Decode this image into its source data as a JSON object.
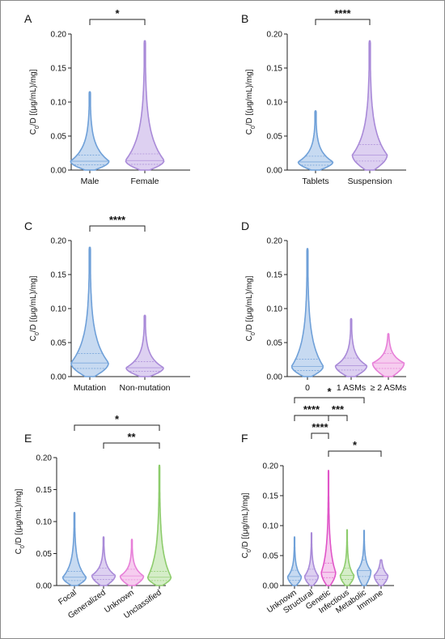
{
  "chart_data": [
    {
      "panel_label": "A",
      "type": "violin",
      "ylabel_main": "C",
      "ylabel_sub": "0",
      "ylabel_rest": "/D [(μg/mL)/mg]",
      "ylim": [
        0,
        0.2
      ],
      "yticks": [
        "0.00",
        "0.05",
        "0.10",
        "0.15",
        "0.20"
      ],
      "categories": [
        "Male",
        "Female"
      ],
      "colors": [
        "#6fa0d8",
        "#a98ad8"
      ],
      "fills": [
        "#c7daf1",
        "#ddd0f1"
      ],
      "max": [
        0.115,
        0.19
      ],
      "mode": [
        0.013,
        0.014
      ],
      "width": [
        0.35,
        0.35
      ],
      "significance": [
        {
          "from": 0,
          "to": 1,
          "label": "*",
          "level": 0
        }
      ]
    },
    {
      "panel_label": "B",
      "type": "violin",
      "ylabel_main": "C",
      "ylabel_sub": "0",
      "ylabel_rest": "/D [(μg/mL)/mg]",
      "ylim": [
        0,
        0.2
      ],
      "yticks": [
        "0.00",
        "0.05",
        "0.10",
        "0.15",
        "0.20"
      ],
      "categories": [
        "Tablets",
        "Suspension"
      ],
      "colors": [
        "#6fa0d8",
        "#a98ad8"
      ],
      "fills": [
        "#c7daf1",
        "#ddd0f1"
      ],
      "max": [
        0.087,
        0.19
      ],
      "mode": [
        0.012,
        0.022
      ],
      "width": [
        0.32,
        0.32
      ],
      "significance": [
        {
          "from": 0,
          "to": 1,
          "label": "****",
          "level": 0
        }
      ]
    },
    {
      "panel_label": "C",
      "type": "violin",
      "ylabel_main": "C",
      "ylabel_sub": "0",
      "ylabel_rest": "/D [(μg/mL)/mg]",
      "ylim": [
        0,
        0.2
      ],
      "yticks": [
        "0.00",
        "0.05",
        "0.10",
        "0.15",
        "0.20"
      ],
      "categories": [
        "Mutation",
        "Non-mutation"
      ],
      "colors": [
        "#6fa0d8",
        "#a98ad8"
      ],
      "fills": [
        "#c7daf1",
        "#ddd0f1"
      ],
      "max": [
        0.19,
        0.09
      ],
      "mode": [
        0.02,
        0.013
      ],
      "width": [
        0.34,
        0.34
      ],
      "significance": [
        {
          "from": 0,
          "to": 1,
          "label": "****",
          "level": 0
        }
      ]
    },
    {
      "panel_label": "D",
      "type": "violin",
      "ylabel_main": "C",
      "ylabel_sub": "0",
      "ylabel_rest": "/D [(μg/mL)/mg]",
      "ylim": [
        0,
        0.2
      ],
      "yticks": [
        "0.00",
        "0.05",
        "0.10",
        "0.15",
        "0.20"
      ],
      "categories": [
        "0",
        "1 ASMs",
        "≥ 2 ASMs"
      ],
      "colors": [
        "#6fa0d8",
        "#a98ad8",
        "#e77fd8"
      ],
      "fills": [
        "#c7daf1",
        "#ddd0f1",
        "#f6cdef"
      ],
      "max": [
        0.188,
        0.085,
        0.063
      ],
      "mode": [
        0.015,
        0.016,
        0.02
      ],
      "width": [
        0.36,
        0.36,
        0.36
      ],
      "significance": []
    },
    {
      "panel_label": "E",
      "type": "violin",
      "ylabel_main": "C",
      "ylabel_sub": "0",
      "ylabel_rest": "/D [(μg/mL)/mg]",
      "ylim": [
        0,
        0.2
      ],
      "yticks": [
        "0.00",
        "0.05",
        "0.10",
        "0.15",
        "0.20"
      ],
      "categories": [
        "Focal",
        "Generalized",
        "Unknown",
        "Unclassified"
      ],
      "rotate_labels": true,
      "colors": [
        "#6fa0d8",
        "#a98ad8",
        "#e77fd8",
        "#8dcc6c"
      ],
      "fills": [
        "#c7daf1",
        "#ddd0f1",
        "#f6cdef",
        "#d5edc8"
      ],
      "max": [
        0.114,
        0.076,
        0.072,
        0.188
      ],
      "mode": [
        0.013,
        0.016,
        0.015,
        0.013
      ],
      "width": [
        0.4,
        0.4,
        0.4,
        0.4
      ],
      "significance": [
        {
          "from": 0,
          "to": 3,
          "label": "*",
          "level": 1
        },
        {
          "from": 1,
          "to": 3,
          "label": "**",
          "level": 0
        }
      ]
    },
    {
      "panel_label": "F",
      "type": "violin",
      "ylabel_main": "C",
      "ylabel_sub": "0",
      "ylabel_rest": "/D [(μg/mL)/mg]",
      "ylim": [
        0,
        0.2
      ],
      "yticks": [
        "0.00",
        "0.05",
        "0.10",
        "0.15",
        "0.20"
      ],
      "categories": [
        "Unknown",
        "Structural",
        "Genetic",
        "Infectious",
        "Metabolic",
        "Immune"
      ],
      "rotate_labels": true,
      "colors": [
        "#6fa0d8",
        "#a98ad8",
        "#e055c8",
        "#8dcc6c",
        "#6fa0d8",
        "#a98ad8"
      ],
      "fills": [
        "#c7daf1",
        "#ddd0f1",
        "#f6cdef",
        "#d5edc8",
        "#c7daf1",
        "#ddd0f1"
      ],
      "max": [
        0.081,
        0.088,
        0.192,
        0.093,
        0.092,
        0.043
      ],
      "mode": [
        0.015,
        0.016,
        0.022,
        0.017,
        0.025,
        0.017
      ],
      "width": [
        0.4,
        0.4,
        0.42,
        0.4,
        0.4,
        0.4
      ],
      "significance": [
        {
          "from": 0,
          "to": 4,
          "label": "*",
          "level": 3
        },
        {
          "from": 0,
          "to": 2,
          "label": "****",
          "level": 2
        },
        {
          "from": 2,
          "to": 3,
          "label": "***",
          "level": 2
        },
        {
          "from": 1,
          "to": 2,
          "label": "****",
          "level": 1
        },
        {
          "from": 2,
          "to": 5,
          "label": "*",
          "level": 0
        }
      ]
    }
  ]
}
